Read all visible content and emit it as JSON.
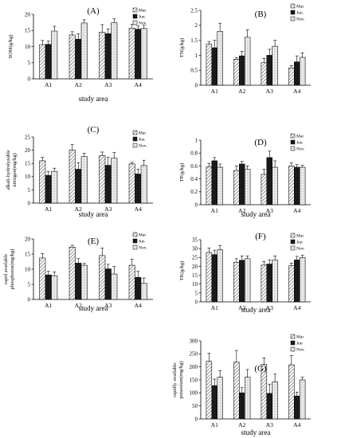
{
  "colors": {
    "mar": "#ffffff",
    "jun": "#1a1a1a",
    "nov": "#e8e8e8",
    "axis": "#000000"
  },
  "chart_data": [
    {
      "type": "bar",
      "title": "(A)",
      "xlabel": "study area",
      "ylabel": "SOM(g/kg)",
      "ylim": [
        0,
        20
      ],
      "yticks": [
        0,
        5,
        10,
        15,
        20
      ],
      "ytick_labels": [
        "0",
        "5",
        "10",
        "15",
        "20"
      ],
      "categories": [
        "A1",
        "A2",
        "A3",
        "A4"
      ],
      "legend": [
        "Mar.",
        "Jun.",
        "Nov."
      ],
      "legend_placement": "top-right",
      "series": [
        {
          "name": "Mar.",
          "values": [
            10.6,
            13.6,
            14.5,
            15.7
          ],
          "errors": [
            1.3,
            1.0,
            2.3,
            1.2
          ]
        },
        {
          "name": "Jun.",
          "values": [
            10.7,
            12.3,
            14.0,
            15.4
          ],
          "errors": [
            1.0,
            1.7,
            1.5,
            1.0
          ]
        },
        {
          "name": "Nov.",
          "values": [
            14.8,
            17.3,
            17.4,
            15.6
          ],
          "errors": [
            1.5,
            1.0,
            1.2,
            1.0
          ]
        }
      ]
    },
    {
      "type": "bar",
      "title": "(B)",
      "xlabel": "",
      "ylabel": "TN(g/kg)",
      "ylim": [
        0,
        2.5
      ],
      "yticks": [
        0,
        0.5,
        1,
        1.5,
        2,
        2.5
      ],
      "ytick_labels": [
        "0",
        "0.5",
        "1",
        "1.5",
        "2",
        "2.5"
      ],
      "categories": [
        "A1",
        "A2",
        "A3",
        "A4"
      ],
      "legend": [
        "Mar.",
        "Jun.",
        "Nov."
      ],
      "legend_placement": "top-right",
      "series": [
        {
          "name": "Mar.",
          "values": [
            1.38,
            0.87,
            0.75,
            0.58
          ],
          "errors": [
            0.08,
            0.05,
            0.15,
            0.07
          ]
        },
        {
          "name": "Jun.",
          "values": [
            1.25,
            0.98,
            1.0,
            0.78
          ],
          "errors": [
            0.25,
            0.15,
            0.2,
            0.2
          ]
        },
        {
          "name": "Nov.",
          "values": [
            1.8,
            1.6,
            1.3,
            0.93
          ],
          "errors": [
            0.27,
            0.25,
            0.2,
            0.15
          ]
        }
      ]
    },
    {
      "type": "bar",
      "title": "(C)",
      "xlabel": "study area",
      "ylabel": "alkali-hydrolyzable nitrogen(mg/kg)",
      "ylim": [
        0,
        25
      ],
      "yticks": [
        0,
        5,
        10,
        15,
        20,
        25
      ],
      "ytick_labels": [
        "0",
        "5",
        "10",
        "15",
        "20",
        "25"
      ],
      "categories": [
        "A1",
        "A2",
        "A3",
        "A4"
      ],
      "legend": [
        "Mar",
        "Jun",
        "Nov."
      ],
      "legend_placement": "top-right",
      "series": [
        {
          "name": "Mar",
          "values": [
            16.0,
            20.1,
            17.9,
            14.8
          ],
          "errors": [
            1.3,
            2.0,
            1.4,
            0.6
          ]
        },
        {
          "name": "Jun",
          "values": [
            10.5,
            12.8,
            14.3,
            11.0
          ],
          "errors": [
            1.5,
            2.5,
            3.0,
            1.8
          ]
        },
        {
          "name": "Nov.",
          "values": [
            12.0,
            17.6,
            17.0,
            14.2
          ],
          "errors": [
            1.2,
            1.2,
            2.2,
            2.0
          ]
        }
      ]
    },
    {
      "type": "bar",
      "title": "(D)",
      "xlabel": "study area",
      "ylabel": "TP(g/kg)",
      "ylim": [
        0,
        1
      ],
      "yticks": [
        0,
        0.2,
        0.4,
        0.6,
        0.8,
        1
      ],
      "ytick_labels": [
        "0",
        "0.2",
        "0.4",
        "0.6",
        "0.8",
        "1"
      ],
      "categories": [
        "A1",
        "A2",
        "A3",
        "A4"
      ],
      "legend": [
        "Mar",
        "Jun",
        "Nov."
      ],
      "legend_placement": "top-right",
      "series": [
        {
          "name": "Mar",
          "values": [
            0.59,
            0.53,
            0.47,
            0.6
          ],
          "errors": [
            0.05,
            0.07,
            0.08,
            0.05
          ]
        },
        {
          "name": "Jun",
          "values": [
            0.68,
            0.63,
            0.73,
            0.58
          ],
          "errors": [
            0.05,
            0.04,
            0.1,
            0.04
          ]
        },
        {
          "name": "Nov.",
          "values": [
            0.58,
            0.55,
            0.58,
            0.58
          ],
          "errors": [
            0.05,
            0.05,
            0.1,
            0.03
          ]
        }
      ]
    },
    {
      "type": "bar",
      "title": "(E)",
      "xlabel": "study area",
      "ylabel": "rapid available phosphorus(mg/kg)",
      "ylim": [
        0,
        20
      ],
      "yticks": [
        0,
        5,
        10,
        15,
        20
      ],
      "ytick_labels": [
        "0",
        "5",
        "10",
        "15",
        "20"
      ],
      "categories": [
        "A1",
        "A2",
        "A3",
        "A4"
      ],
      "legend": [
        "Mar",
        "Jun",
        "Nov."
      ],
      "legend_placement": "top-right",
      "series": [
        {
          "name": "Mar",
          "values": [
            13.7,
            17.3,
            14.5,
            11.3
          ],
          "errors": [
            1.5,
            0.6,
            2.5,
            2.0
          ]
        },
        {
          "name": "Jun",
          "values": [
            8.1,
            12.0,
            10.1,
            7.3
          ],
          "errors": [
            1.2,
            1.5,
            1.5,
            2.0
          ]
        },
        {
          "name": "Nov.",
          "values": [
            7.8,
            11.3,
            8.4,
            5.3
          ],
          "errors": [
            1.3,
            0.6,
            2.5,
            1.8
          ]
        }
      ]
    },
    {
      "type": "bar",
      "title": "(F)",
      "xlabel": "study area",
      "ylabel": "TK(g/kg)",
      "ylim": [
        0,
        35
      ],
      "yticks": [
        0,
        5,
        10,
        15,
        20,
        25,
        30,
        35
      ],
      "ytick_labels": [
        "0",
        "5",
        "10",
        "15",
        "20",
        "25",
        "30",
        "35"
      ],
      "categories": [
        "A1",
        "A2",
        "A3",
        "A4"
      ],
      "legend": [
        "Mar",
        "Jun",
        "Nov."
      ],
      "legend_placement": "top-right",
      "series": [
        {
          "name": "Mar",
          "values": [
            27.8,
            22.3,
            20.7,
            20.3
          ],
          "errors": [
            2.5,
            2.0,
            2.0,
            1.5
          ]
        },
        {
          "name": "Jun",
          "values": [
            26.6,
            23.4,
            21.3,
            23.6
          ],
          "errors": [
            2.5,
            2.5,
            2.3,
            2.0
          ]
        },
        {
          "name": "Nov.",
          "values": [
            29.3,
            24.3,
            23.6,
            25.0
          ],
          "errors": [
            2.5,
            1.5,
            2.2,
            1.2
          ]
        }
      ]
    },
    {
      "type": "bar",
      "title": "(G)",
      "xlabel": "study area",
      "ylabel": "rapidly available potassium(mg/kg)",
      "ylim": [
        0,
        300
      ],
      "yticks": [
        0,
        50,
        100,
        150,
        200,
        250,
        300
      ],
      "ytick_labels": [
        "0",
        "50",
        "100",
        "150",
        "200",
        "250",
        "300"
      ],
      "categories": [
        "A1",
        "A2",
        "A3",
        "A4"
      ],
      "legend": [
        "Mar",
        "Jun",
        "Nov."
      ],
      "legend_placement": "top-right",
      "series": [
        {
          "name": "Mar",
          "values": [
            222,
            218,
            210,
            208
          ],
          "errors": [
            30,
            45,
            25,
            35
          ]
        },
        {
          "name": "Jun",
          "values": [
            128,
            100,
            98,
            88
          ],
          "errors": [
            25,
            20,
            35,
            15
          ]
        },
        {
          "name": "Nov.",
          "values": [
            160,
            160,
            142,
            150
          ],
          "errors": [
            25,
            30,
            30,
            10
          ]
        }
      ]
    }
  ]
}
